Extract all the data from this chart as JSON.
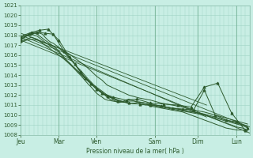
{
  "xlabel": "Pression niveau de la mer( hPa )",
  "ylim": [
    1008,
    1021
  ],
  "yticks": [
    1008,
    1009,
    1010,
    1011,
    1012,
    1013,
    1014,
    1015,
    1016,
    1017,
    1018,
    1019,
    1020,
    1021
  ],
  "xtick_labels": [
    "Jeu",
    "Mar",
    "Ven",
    "Sam",
    "Dim",
    "Lun"
  ],
  "bg_color": "#c8eee4",
  "grid_color": "#a0d4c4",
  "line_color": "#2d5a2d",
  "days": 6,
  "series": [
    {
      "x": [
        0.0,
        0.03,
        0.06,
        0.09,
        0.12,
        0.16,
        0.19,
        0.22,
        0.25,
        0.31,
        0.38,
        0.44,
        0.5,
        0.56,
        0.63,
        0.69,
        0.75,
        0.81,
        0.88,
        0.94,
        1.0,
        1.06,
        1.13,
        1.19,
        1.25,
        1.31,
        1.38,
        1.44,
        1.5,
        1.56,
        1.63,
        1.69,
        1.75,
        1.81,
        1.88,
        1.94,
        2.0,
        2.06,
        2.13,
        2.19,
        2.25,
        2.31,
        2.38,
        2.44,
        2.5,
        2.56,
        2.63,
        2.69,
        2.75,
        2.81,
        2.88,
        2.94,
        3.0,
        3.13,
        3.25,
        3.38,
        3.5,
        3.63,
        3.75,
        3.88,
        4.0,
        4.13,
        4.25,
        4.38,
        4.5,
        4.63,
        4.75,
        4.88,
        5.0,
        5.13,
        5.25
      ],
      "y": [
        1017.5,
        1017.6,
        1017.7,
        1017.8,
        1017.9,
        1018.0,
        1018.1,
        1018.0,
        1018.0,
        1018.2,
        1018.3,
        1018.2,
        1018.1,
        1017.8,
        1017.5,
        1017.3,
        1017.2,
        1017.0,
        1016.8,
        1016.5,
        1016.3,
        1016.0,
        1015.7,
        1015.4,
        1015.1,
        1014.8,
        1014.5,
        1014.2,
        1013.9,
        1013.6,
        1013.3,
        1013.0,
        1012.8,
        1012.5,
        1012.3,
        1012.0,
        1011.8,
        1011.6,
        1011.5,
        1011.4,
        1011.3,
        1011.3,
        1011.4,
        1011.5,
        1011.6,
        1011.5,
        1011.4,
        1011.3,
        1011.2,
        1011.1,
        1011.0,
        1011.0,
        1010.9,
        1010.8,
        1010.7,
        1010.6,
        1010.5,
        1010.4,
        1010.3,
        1010.1,
        1009.9,
        1009.7,
        1009.5,
        1009.3,
        1009.1,
        1008.9,
        1008.7,
        1008.6,
        1008.5,
        1008.5,
        1008.4
      ]
    },
    {
      "x": [
        0.0,
        0.06,
        0.13,
        0.19,
        0.25,
        0.31,
        0.38,
        0.44,
        0.5,
        0.56,
        0.63,
        0.69,
        0.75,
        0.81,
        0.88,
        0.94,
        1.0,
        1.06,
        1.13,
        1.19,
        1.25,
        1.31,
        1.38,
        1.44,
        1.5,
        1.56,
        1.63,
        1.69,
        1.75,
        1.81,
        1.88,
        1.94,
        2.0,
        2.13,
        2.25,
        2.38,
        2.5,
        2.63,
        2.75,
        2.88,
        3.0,
        3.13,
        3.25,
        3.38,
        3.5,
        3.63,
        3.75,
        3.88,
        4.0,
        4.13,
        4.25,
        4.38,
        4.5,
        4.63,
        4.75,
        4.88,
        5.0,
        5.13,
        5.25
      ],
      "y": [
        1017.8,
        1018.0,
        1018.1,
        1018.2,
        1018.3,
        1018.2,
        1018.1,
        1017.9,
        1017.7,
        1017.5,
        1017.3,
        1017.1,
        1016.9,
        1016.7,
        1016.4,
        1016.1,
        1015.8,
        1015.5,
        1015.2,
        1014.9,
        1014.6,
        1014.3,
        1014.0,
        1013.7,
        1013.4,
        1013.1,
        1012.8,
        1012.5,
        1012.2,
        1012.0,
        1011.8,
        1011.6,
        1011.5,
        1011.4,
        1011.3,
        1011.3,
        1011.4,
        1011.4,
        1011.3,
        1011.2,
        1011.1,
        1011.0,
        1010.9,
        1010.8,
        1010.7,
        1010.6,
        1010.5,
        1010.4,
        1010.3,
        1010.2,
        1010.0,
        1009.8,
        1009.6,
        1009.4,
        1009.2,
        1009.0,
        1008.8,
        1008.7,
        1008.5
      ]
    },
    {
      "x": [
        0.0,
        0.06,
        0.13,
        0.19,
        0.25,
        0.31,
        0.38,
        0.44,
        0.5,
        0.56,
        0.63,
        0.69,
        0.75,
        0.81,
        0.88,
        0.94,
        1.0,
        1.13,
        1.25,
        1.38,
        1.5,
        1.63,
        1.75,
        1.88,
        2.0,
        2.13,
        2.25,
        2.38,
        2.5,
        2.63,
        2.75,
        2.88,
        3.0,
        3.25,
        3.5,
        3.75,
        4.0,
        4.25,
        4.5,
        4.75,
        5.0,
        5.25
      ],
      "y": [
        1017.6,
        1017.8,
        1017.9,
        1018.0,
        1018.1,
        1018.0,
        1017.9,
        1017.7,
        1017.5,
        1017.3,
        1017.1,
        1016.9,
        1016.7,
        1016.5,
        1016.3,
        1016.0,
        1015.7,
        1015.2,
        1014.7,
        1014.2,
        1013.7,
        1013.2,
        1012.8,
        1012.4,
        1012.0,
        1011.7,
        1011.5,
        1011.3,
        1011.2,
        1011.2,
        1011.3,
        1011.2,
        1011.1,
        1010.9,
        1010.7,
        1010.5,
        1010.3,
        1010.1,
        1009.8,
        1009.5,
        1009.2,
        1008.9
      ]
    },
    {
      "x": [
        0.0,
        0.06,
        0.13,
        0.19,
        0.25,
        0.31,
        0.38,
        0.44,
        0.5,
        0.56,
        0.63,
        0.69,
        0.75,
        0.88,
        1.0,
        1.13,
        1.25,
        1.38,
        1.5,
        1.63,
        1.75,
        1.88,
        2.0,
        2.25,
        2.5,
        2.75,
        3.0,
        3.25,
        3.5,
        3.75,
        4.0,
        4.25,
        4.5,
        4.75,
        5.0,
        5.25
      ],
      "y": [
        1017.3,
        1017.5,
        1017.6,
        1017.7,
        1017.8,
        1017.7,
        1017.6,
        1017.4,
        1017.2,
        1017.0,
        1016.8,
        1016.6,
        1016.4,
        1016.0,
        1015.6,
        1015.1,
        1014.6,
        1014.1,
        1013.6,
        1013.1,
        1012.6,
        1012.2,
        1011.9,
        1011.5,
        1011.2,
        1011.1,
        1011.0,
        1010.8,
        1010.6,
        1010.4,
        1010.2,
        1010.0,
        1009.7,
        1009.4,
        1009.1,
        1008.8
      ]
    },
    {
      "x": [
        0.0,
        0.06,
        0.13,
        0.25,
        0.38,
        0.5,
        0.63,
        0.75,
        0.88,
        1.0,
        1.13,
        1.25,
        1.38,
        1.5,
        1.63,
        1.75,
        1.88,
        2.0,
        2.25,
        2.5,
        2.75,
        3.0,
        3.25,
        3.5,
        3.75,
        4.0,
        4.25,
        4.5,
        4.75,
        5.0,
        5.25
      ],
      "y": [
        1017.2,
        1017.4,
        1017.5,
        1017.6,
        1017.5,
        1017.3,
        1017.1,
        1016.9,
        1016.7,
        1016.4,
        1016.1,
        1015.7,
        1015.3,
        1014.9,
        1014.4,
        1013.9,
        1013.5,
        1013.0,
        1012.5,
        1012.0,
        1011.7,
        1011.5,
        1011.2,
        1011.0,
        1010.8,
        1010.5,
        1010.3,
        1010.0,
        1009.7,
        1009.4,
        1009.1
      ]
    }
  ],
  "marker_lines": [
    {
      "x": [
        0.0,
        0.25,
        0.44,
        0.63,
        0.88,
        1.13,
        1.38,
        1.63,
        1.88,
        2.13,
        2.44,
        2.69,
        3.0,
        3.31,
        3.63,
        3.94,
        4.25,
        4.56,
        4.88,
        5.19
      ],
      "y": [
        1017.5,
        1018.3,
        1018.5,
        1018.6,
        1017.5,
        1015.8,
        1014.3,
        1013.1,
        1012.2,
        1011.8,
        1011.5,
        1011.6,
        1011.2,
        1011.1,
        1011.0,
        1010.8,
        1012.8,
        1013.2,
        1010.2,
        1008.5
      ]
    },
    {
      "x": [
        0.0,
        0.19,
        0.38,
        0.56,
        0.75,
        1.0,
        1.25,
        1.5,
        1.75,
        2.0,
        2.25,
        2.5,
        2.75,
        3.0,
        3.25,
        3.5,
        3.75,
        4.0,
        4.25,
        4.5,
        4.75,
        5.0,
        5.25
      ],
      "y": [
        1017.8,
        1018.1,
        1018.3,
        1018.2,
        1018.1,
        1016.4,
        1015.1,
        1013.7,
        1012.6,
        1011.9,
        1011.4,
        1011.2,
        1011.1,
        1011.0,
        1010.9,
        1010.7,
        1010.6,
        1010.5,
        1012.5,
        1010.0,
        1009.5,
        1009.3,
        1008.7
      ]
    }
  ],
  "straight_lines": [
    {
      "x": [
        0.0,
        5.3
      ],
      "y": [
        1017.5,
        1008.2
      ]
    },
    {
      "x": [
        0.0,
        5.3
      ],
      "y": [
        1018.0,
        1008.8
      ]
    },
    {
      "x": [
        0.0,
        4.3
      ],
      "y": [
        1018.2,
        1011.0
      ]
    },
    {
      "x": [
        0.0,
        4.3
      ],
      "y": [
        1017.8,
        1009.8
      ]
    }
  ],
  "vlines": [
    0.0,
    0.88,
    1.75,
    3.1,
    4.1,
    5.0
  ],
  "xtick_positions": [
    0.0,
    0.88,
    1.75,
    3.1,
    4.1,
    5.0
  ]
}
